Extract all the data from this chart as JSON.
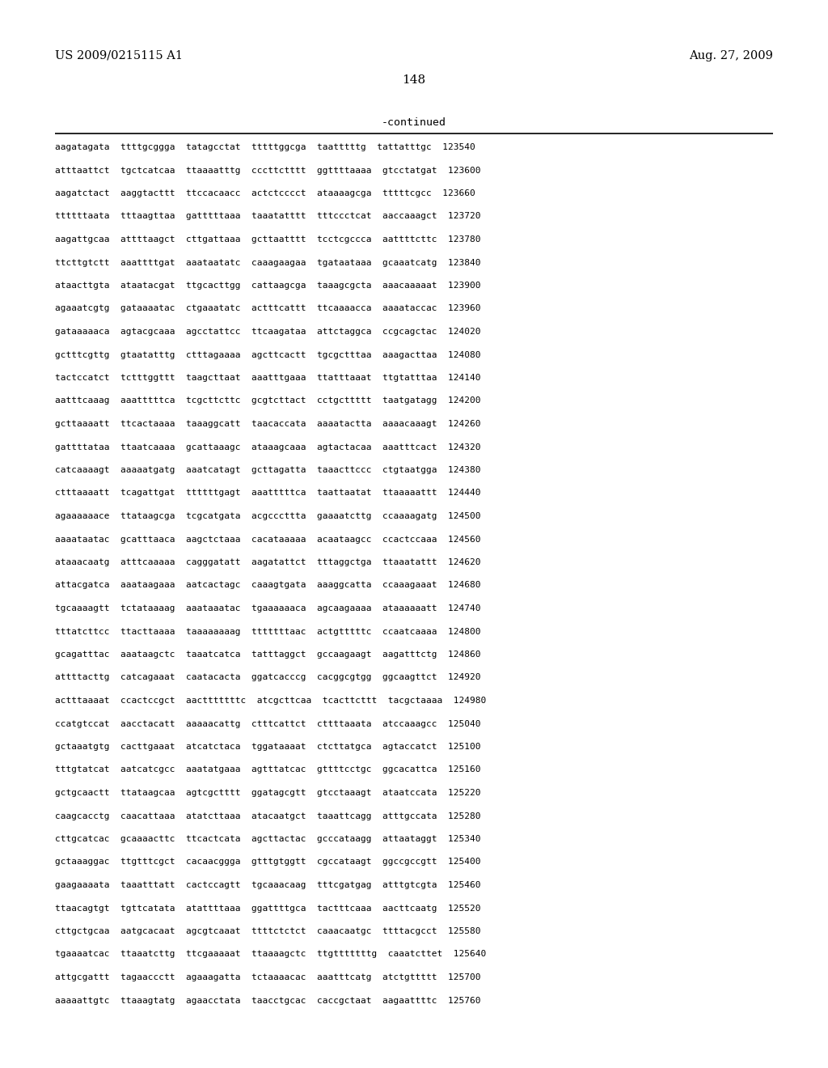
{
  "header_left": "US 2009/0215115 A1",
  "header_right": "Aug. 27, 2009",
  "page_number": "148",
  "continued_label": "-continued",
  "background_color": "#ffffff",
  "text_color": "#000000",
  "lines": [
    "aagatagata  ttttgcggga  tatagcctat  tttttggcga  taatttttg  tattatttgc  123540",
    "atttaattct  tgctcatcaa  ttaaaatttg  cccttctttt  ggttttaaaa  gtcctatgat  123600",
    "aagatctact  aaggtacttt  ttccacaacc  actctcccct  ataaaagcga  tttttcgcc  123660",
    "ttttttaata  tttaagttaa  gatttttaaa  taaatatttt  tttccctcat  aaccaaagct  123720",
    "aagattgcaa  attttaagct  cttgattaaa  gcttaatttt  tcctcgccca  aattttcttc  123780",
    "ttcttgtctt  aaattttgat  aaataatatc  caaagaagaa  tgataataaa  gcaaatcatg  123840",
    "ataacttgta  ataatacgat  ttgcacttgg  cattaagcga  taaagcgcta  aaacaaaaat  123900",
    "agaaatcgtg  gataaaatac  ctgaaatatc  actttcattt  ttcaaaacca  aaaataccac  123960",
    "gataaaaaca  agtacgcaaa  agcctattcc  ttcaagataa  attctaggca  ccgcagctac  124020",
    "gctttcgttg  gtaatatttg  ctttagaaaa  agcttcactt  tgcgctttaa  aaagacttaa  124080",
    "tactccatct  tctttggttt  taagcttaat  aaatttgaaa  ttatttaaat  ttgtatttaa  124140",
    "aatttcaaag  aaatttttca  tcgcttcttc  gcgtcttact  cctgcttttt  taatgatagg  124200",
    "gcttaaaatt  ttcactaaaa  taaaggcatt  taacaccata  aaaatactta  aaaacaaagt  124260",
    "gattttataa  ttaatcaaaa  gcattaaagc  ataaagcaaa  agtactacaa  aaatttcact  124320",
    "catcaaaagt  aaaaatgatg  aaatcatagt  gcttagatta  taaacttccc  ctgtaatgga  124380",
    "ctttaaaatt  tcagattgat  ttttttgagt  aaatttttca  taattaatat  ttaaaaattt  124440",
    "agaaaaaace  ttataagcga  tcgcatgata  acgcccttta  gaaaatcttg  ccaaaagatg  124500",
    "aaaataatac  gcatttaaca  aagctctaaa  cacataaaaa  acaataagcc  ccactccaaa  124560",
    "ataaacaatg  atttcaaaaa  cagggatatt  aagatattct  tttaggctga  ttaaatattt  124620",
    "attacgatca  aaataagaaa  aatcactagc  caaagtgata  aaaggcatta  ccaaagaaat  124680",
    "tgcaaaagtt  tctataaaag  aaataaatac  tgaaaaaaca  agcaagaaaa  ataaaaaatt  124740",
    "tttatcttcc  ttacttaaaa  taaaaaaaag  tttttttaac  actgtttttc  ccaatcaaaa  124800",
    "gcagatttac  aaataagctc  taaatcatca  tatttaggct  gccaagaagt  aagatttctg  124860",
    "attttacttg  catcagaaat  caatacacta  ggatcacccg  cacggcgtgg  ggcaagttct  124920",
    "actttaaaat  ccactccgct  aactttttttc  atcgcttcaa  tcacttcttt  tacgctaaaa  124980",
    "ccatgtccat  aacctacatt  aaaaacattg  ctttcattct  cttttaaata  atccaaagcc  125040",
    "gctaaatgtg  cacttgaaat  atcatctaca  tggataaaat  ctcttatgca  agtaccatct  125100",
    "tttgtatcat  aatcatcgcc  aaatatgaaa  agtttatcac  gttttcctgc  ggcacattca  125160",
    "gctgcaactt  ttataagcaa  agtcgctttt  ggatagcgtt  gtcctaaagt  ataatccata  125220",
    "caagcacctg  caacattaaa  atatcttaaa  atacaatgct  taaattcagg  atttgccata  125280",
    "cttgcatcac  gcaaaacttc  ttcactcata  agcttactac  gcccataagg  attaataggt  125340",
    "gctaaaggac  ttgtttcgct  cacaacggga  gtttgtggtt  cgccataagt  ggccgccgtt  125400",
    "gaagaaaata  taaatttatt  cactccagtt  tgcaaacaag  tttcgatgag  atttgtcgta  125460",
    "ttaacagtgt  tgttcatata  atattttaaa  ggattttgca  tactttcaaa  aacttcaatg  125520",
    "cttgctgcaa  aatgcacaat  agcgtcaaat  ttttctctct  caaacaatgc  ttttacgcct  125580",
    "tgaaaatcac  ttaaatcttg  ttcgaaaaat  ttaaaagctc  ttgtttttttg  caaatcttet  125640",
    "attgcgattt  tagaaccctt  agaaagatta  tctaaaacac  aaatttcatg  atctgttttt  125700",
    "aaaaattgtc  ttaaagtatg  agaacctata  taacctgcac  caccgctaat  aagaattttc  125760"
  ]
}
